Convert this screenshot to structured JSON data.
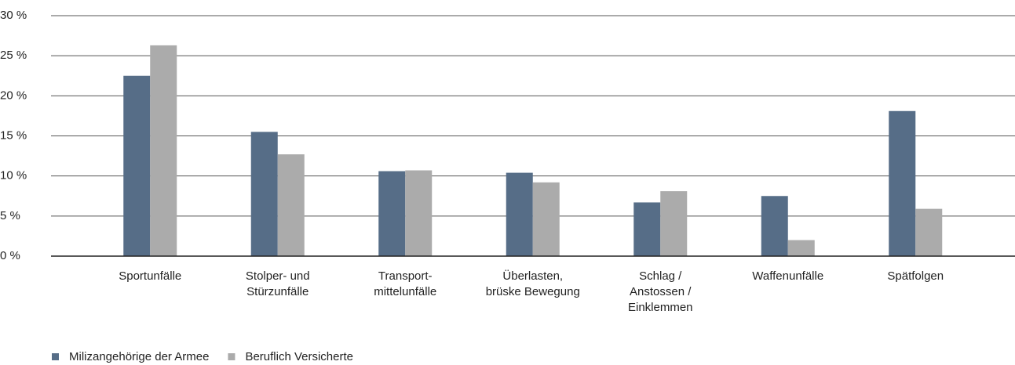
{
  "chart_data": {
    "type": "bar",
    "categories": [
      "Sportunfälle",
      "Stolper- und\nStürzunfälle",
      "Transport-\nmittelunfälle",
      "Überlasten,\nbrüske Bewegung",
      "Schlag /\nAnstossen /\nEinklemmen",
      "Waffenunfälle",
      "Spätfolgen"
    ],
    "series": [
      {
        "name": "Milizangehörige der Armee",
        "color": "#566d87",
        "values": [
          22.5,
          15.5,
          10.6,
          10.4,
          6.7,
          7.5,
          18.1
        ]
      },
      {
        "name": "Beruflich Versicherte",
        "color": "#ababab",
        "values": [
          26.3,
          12.7,
          10.7,
          9.2,
          8.1,
          2.0,
          5.9
        ]
      }
    ],
    "ylim": [
      0,
      30
    ],
    "yticks": [
      {
        "value": 0,
        "label": "0 %"
      },
      {
        "value": 5,
        "label": "5 %"
      },
      {
        "value": 10,
        "label": "10 %"
      },
      {
        "value": 15,
        "label": "15 %"
      },
      {
        "value": 20,
        "label": "20 %"
      },
      {
        "value": 25,
        "label": "25 %"
      },
      {
        "value": 30,
        "label": "30 %"
      }
    ],
    "grid": true,
    "legend": "bottom-left"
  }
}
